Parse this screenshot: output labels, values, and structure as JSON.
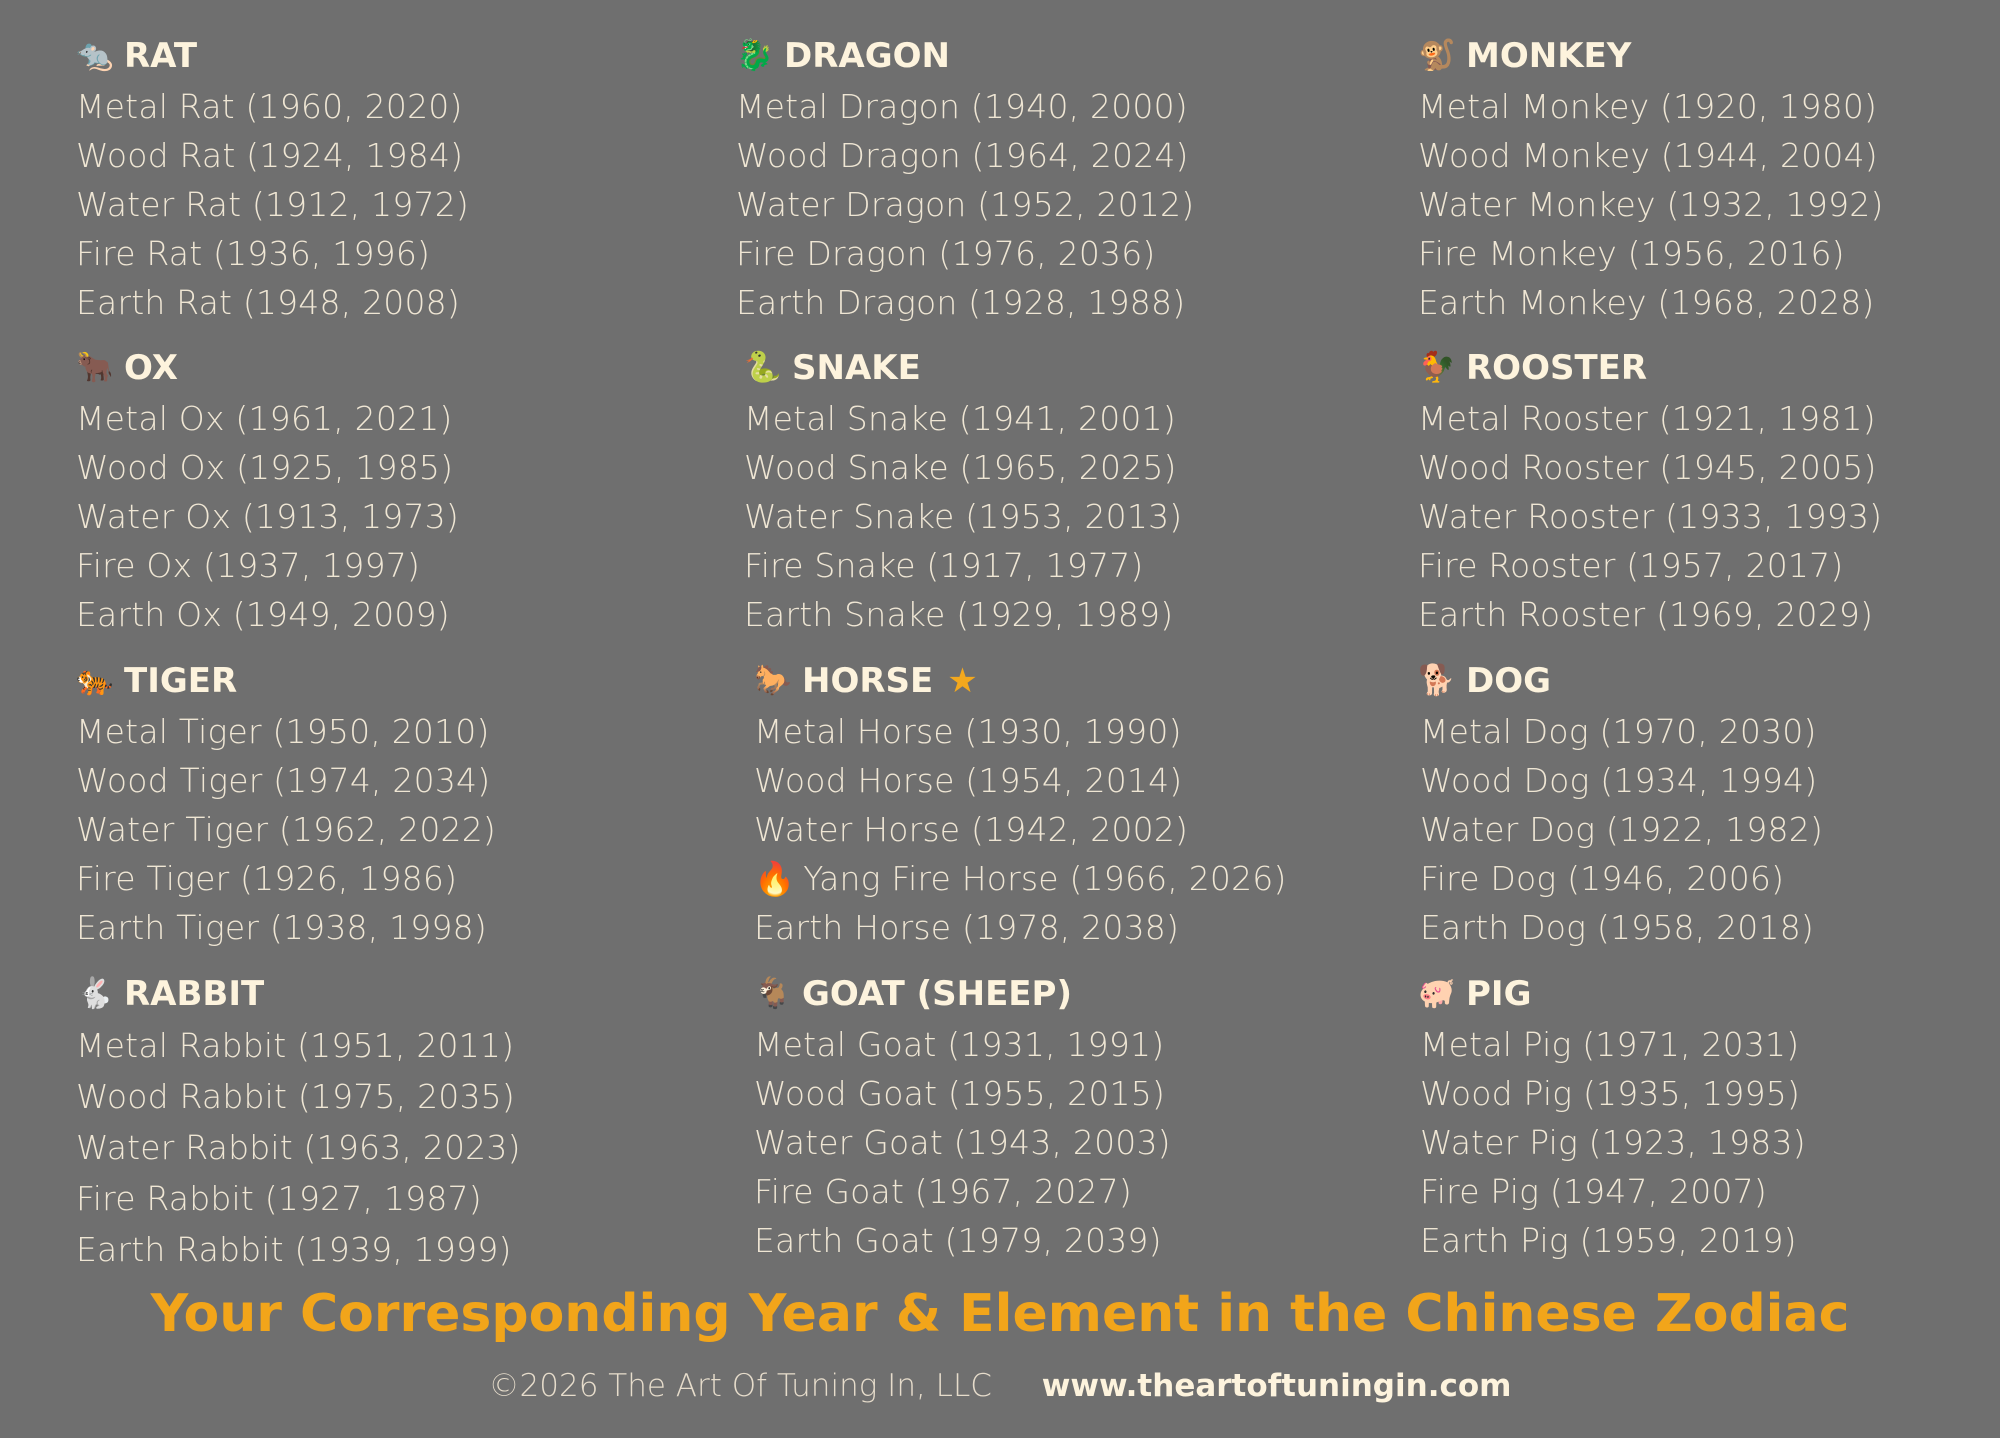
{
  "animals": [
    {
      "name": "RAT",
      "icon": "🐀",
      "icon_name": "rat-icon",
      "entries": [
        "Metal Rat (1960, 2020)",
        "Wood Rat (1924, 1984)",
        "Water Rat (1912, 1972)",
        "Fire Rat (1936, 1996)",
        "Earth Rat (1948, 2008)"
      ]
    },
    {
      "name": "OX",
      "icon": "🐂",
      "icon_name": "ox-icon",
      "entries": [
        "Metal Ox (1961, 2021)",
        "Wood Ox (1925, 1985)",
        "Water Ox (1913, 1973)",
        "Fire Ox (1937, 1997)",
        "Earth Ox (1949, 2009)"
      ]
    },
    {
      "name": "TIGER",
      "icon": "🐅",
      "icon_name": "tiger-icon",
      "entries": [
        "Metal Tiger (1950, 2010)",
        "Wood Tiger (1974, 2034)",
        "Water Tiger (1962, 2022)",
        "Fire Tiger (1926, 1986)",
        "Earth Tiger (1938, 1998)"
      ]
    },
    {
      "name": "RABBIT",
      "icon": "🐇",
      "icon_name": "rabbit-icon",
      "entries": [
        "Metal Rabbit (1951, 2011)",
        "Wood Rabbit (1975, 2035)",
        "Water Rabbit (1963, 2023)",
        "Fire Rabbit (1927, 1987)",
        "Earth Rabbit (1939, 1999)"
      ]
    },
    {
      "name": "DRAGON",
      "icon": "🐉",
      "icon_name": "dragon-icon",
      "entries": [
        "Metal Dragon (1940, 2000)",
        "Wood Dragon (1964, 2024)",
        "Water Dragon (1952, 2012)",
        "Fire Dragon (1976, 2036)",
        "Earth Dragon (1928, 1988)"
      ]
    },
    {
      "name": "SNAKE",
      "icon": "🐍",
      "icon_name": "snake-icon",
      "entries": [
        "Metal Snake (1941, 2001)",
        "Wood Snake (1965, 2025)",
        "Water Snake (1953, 2013)",
        "Fire Snake (1917, 1977)",
        "Earth Snake (1929, 1989)"
      ]
    },
    {
      "name": "HORSE",
      "icon": "🐎",
      "icon_name": "horse-icon",
      "star": "★",
      "entries": [
        "Metal Horse (1930, 1990)",
        "Wood Horse (1954, 2014)",
        "Water Horse (1942, 2002)",
        "Yang Fire Horse (1966, 2026)",
        "Earth Horse (1978, 2038)"
      ],
      "highlight_icon": "🔥"
    },
    {
      "name": "GOAT (SHEEP)",
      "icon": "🐐",
      "icon_name": "goat-icon",
      "entries": [
        "Metal Goat (1931, 1991)",
        "Wood Goat (1955, 2015)",
        "Water Goat (1943, 2003)",
        "Fire Goat (1967, 2027)",
        "Earth Goat (1979, 2039)"
      ]
    },
    {
      "name": "MONKEY",
      "icon": "🐒",
      "icon_name": "monkey-icon",
      "entries": [
        "Metal Monkey (1920, 1980)",
        "Wood Monkey (1944, 2004)",
        "Water Monkey (1932, 1992)",
        "Fire Monkey (1956, 2016)",
        "Earth Monkey (1968, 2028)"
      ]
    },
    {
      "name": "ROOSTER",
      "icon": "🐓",
      "icon_name": "rooster-icon",
      "entries": [
        "Metal Rooster (1921, 1981)",
        "Wood Rooster (1945, 2005)",
        "Water Rooster (1933, 1993)",
        "Fire Rooster (1957, 2017)",
        "Earth Rooster (1969, 2029)"
      ]
    },
    {
      "name": "DOG",
      "icon": "🐕",
      "icon_name": "dog-icon",
      "entries": [
        "Metal Dog (1970, 2030)",
        "Wood Dog (1934, 1994)",
        "Water Dog (1922, 1982)",
        "Fire Dog (1946, 2006)",
        "Earth Dog (1958, 2018)"
      ]
    },
    {
      "name": "PIG",
      "icon": "🐖",
      "icon_name": "pig-icon",
      "entries": [
        "Metal Pig (1971, 2031)",
        "Wood Pig (1935, 1995)",
        "Water Pig (1923, 1983)",
        "Fire Pig (1947, 2007)",
        "Earth Pig (1959, 2019)"
      ]
    }
  ],
  "footer": {
    "title": "Your Corresponding Year & Element in the Chinese Zodiac",
    "copyright": "©2026 The Art Of Tuning In, LLC",
    "website": "www.theartoftuningin.com"
  },
  "colors": {
    "background": "#6f6f6f",
    "heading": "#fdf3dd",
    "entry": "#efe6d4",
    "accent": "#f2a51a"
  }
}
